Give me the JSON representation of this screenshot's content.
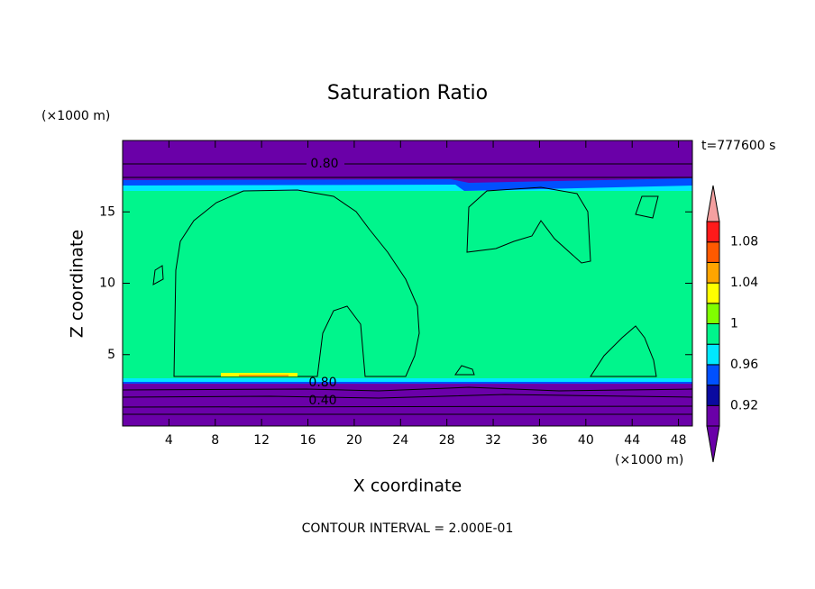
{
  "chart_data": {
    "type": "contour",
    "title": "Saturation Ratio",
    "x_label": "X coordinate",
    "y_label": "Z coordinate",
    "x_unit": "(×1000 m)",
    "y_unit": "(×1000 m)",
    "time_label": "t=777600 s",
    "footer": "CONTOUR INTERVAL = 2.000E-01",
    "contour_labels": [
      "0.80",
      "0.80",
      "0.40"
    ],
    "xlim": [
      0,
      49.2
    ],
    "ylim": [
      0,
      20
    ],
    "xticks": [
      4,
      8,
      12,
      16,
      20,
      24,
      28,
      32,
      36,
      40,
      44,
      48
    ],
    "yticks": [
      5,
      10,
      15
    ],
    "colorbar": {
      "levels": [
        0.9,
        0.92,
        0.94,
        0.96,
        0.98,
        1,
        1.02,
        1.04,
        1.06,
        1.08,
        1.1
      ],
      "colors": [
        "#6a00a8",
        "#6a00a8",
        "#0a0aa0",
        "#0050ff",
        "#00e8ff",
        "#00f58c",
        "#80ff00",
        "#ffff00",
        "#ffa500",
        "#ff5a00",
        "#ff1a1a",
        "#f4a0a0"
      ],
      "ticks": [
        0.92,
        0.96,
        1,
        1.04,
        1.08
      ]
    }
  }
}
